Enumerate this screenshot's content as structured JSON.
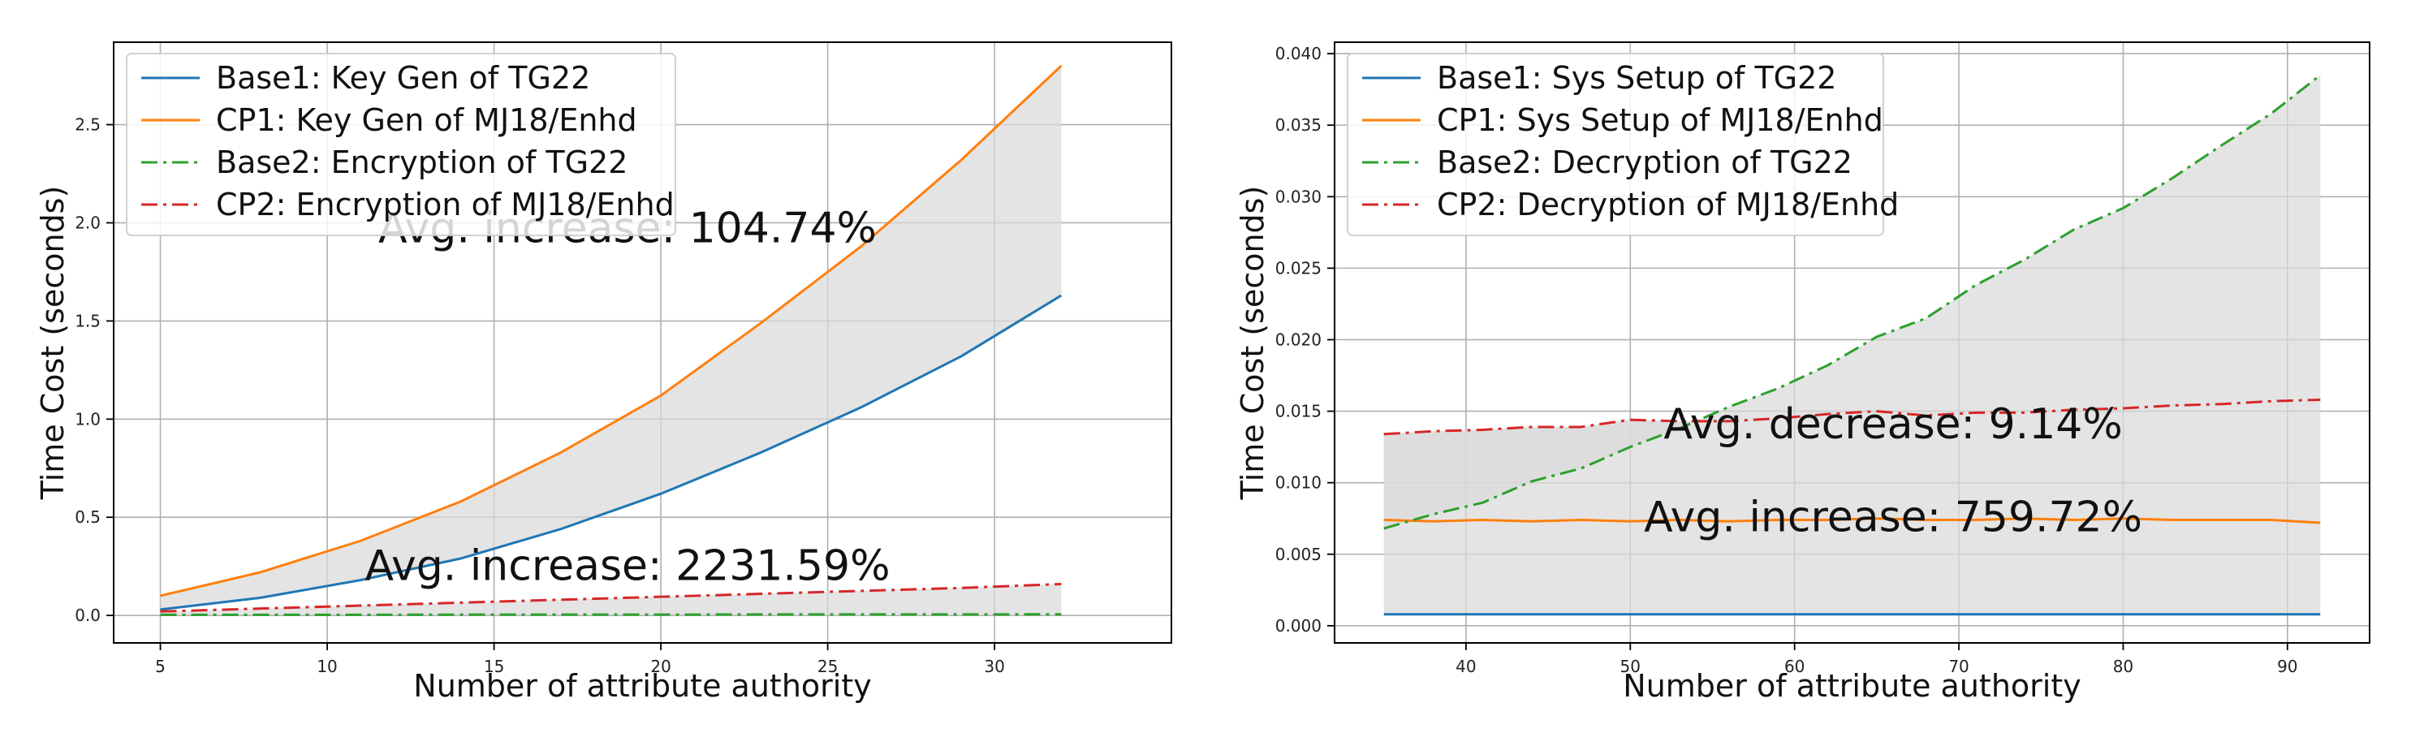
{
  "chart_data": [
    {
      "type": "line",
      "xlabel": "Number of attribute authority",
      "ylabel": "Time Cost (seconds)",
      "xlim": [
        3.6,
        35.3
      ],
      "ylim": [
        -0.14,
        2.92
      ],
      "xticks": [
        5,
        10,
        15,
        20,
        25,
        30
      ],
      "yticks": [
        0.0,
        0.5,
        1.0,
        1.5,
        2.0,
        2.5
      ],
      "xtick_labels": [
        "5",
        "10",
        "15",
        "20",
        "25",
        "30"
      ],
      "ytick_labels": [
        "0.0",
        "0.5",
        "1.0",
        "1.5",
        "2.0",
        "2.5"
      ],
      "grid": true,
      "legend_position": "upper-left",
      "x": [
        5,
        8,
        11,
        14,
        17,
        20,
        23,
        26,
        29,
        32
      ],
      "series": [
        {
          "name": "Base1: Key Gen of TG22",
          "color": "#1f77b4",
          "style": "solid",
          "values": [
            0.03,
            0.09,
            0.18,
            0.29,
            0.44,
            0.62,
            0.83,
            1.06,
            1.32,
            1.63
          ]
        },
        {
          "name": "CP1: Key Gen of MJ18/Enhd",
          "color": "#ff7f0e",
          "style": "solid",
          "values": [
            0.1,
            0.22,
            0.38,
            0.58,
            0.83,
            1.12,
            1.49,
            1.88,
            2.32,
            2.8
          ]
        },
        {
          "name": "Base2: Encryption of TG22",
          "color": "#2ca02c",
          "style": "dashdot",
          "values": [
            0.003,
            0.003,
            0.003,
            0.004,
            0.004,
            0.004,
            0.005,
            0.005,
            0.005,
            0.006
          ]
        },
        {
          "name": "CP2: Encryption of MJ18/Enhd",
          "color": "#d62728",
          "style": "dashdot",
          "values": [
            0.02,
            0.035,
            0.05,
            0.065,
            0.08,
            0.095,
            0.11,
            0.125,
            0.14,
            0.16
          ]
        }
      ],
      "fills": [
        {
          "between": [
            0,
            1
          ]
        },
        {
          "between": [
            2,
            3
          ]
        }
      ],
      "annotations": [
        {
          "text": "Avg. increase: 104.74%",
          "x": 19.0,
          "y": 1.9
        },
        {
          "text": "Avg. increase: 2231.59%",
          "x": 19.0,
          "y": 0.18
        }
      ]
    },
    {
      "type": "line",
      "xlabel": "Number of attribute authority",
      "ylabel": "Time Cost (seconds)",
      "xlim": [
        32.0,
        95.0
      ],
      "ylim": [
        -0.0012,
        0.0408
      ],
      "xticks": [
        40,
        50,
        60,
        70,
        80,
        90
      ],
      "yticks": [
        0.0,
        0.005,
        0.01,
        0.015,
        0.02,
        0.025,
        0.03,
        0.035,
        0.04
      ],
      "xtick_labels": [
        "40",
        "50",
        "60",
        "70",
        "80",
        "90"
      ],
      "ytick_labels": [
        "0.000",
        "0.005",
        "0.010",
        "0.015",
        "0.020",
        "0.025",
        "0.030",
        "0.035",
        "0.040"
      ],
      "grid": true,
      "legend_position": "upper-left",
      "x": [
        35,
        38,
        41,
        44,
        47,
        50,
        53,
        56,
        59,
        62,
        65,
        68,
        71,
        74,
        77,
        80,
        83,
        86,
        89,
        92
      ],
      "series": [
        {
          "name": "Base1: Sys Setup of TG22",
          "color": "#1f77b4",
          "style": "solid",
          "values": [
            0.0008,
            0.0008,
            0.0008,
            0.0008,
            0.0008,
            0.0008,
            0.0008,
            0.0008,
            0.0008,
            0.0008,
            0.0008,
            0.0008,
            0.0008,
            0.0008,
            0.0008,
            0.0008,
            0.0008,
            0.0008,
            0.0008,
            0.0008
          ]
        },
        {
          "name": "CP1: Sys Setup of MJ18/Enhd",
          "color": "#ff7f0e",
          "style": "solid",
          "values": [
            0.0074,
            0.0073,
            0.0074,
            0.0073,
            0.0074,
            0.0073,
            0.0074,
            0.0073,
            0.0074,
            0.0074,
            0.0075,
            0.0074,
            0.0074,
            0.0075,
            0.0074,
            0.0075,
            0.0074,
            0.0074,
            0.0074,
            0.0072
          ]
        },
        {
          "name": "Base2: Decryption of TG22",
          "color": "#2ca02c",
          "style": "dashdot",
          "values": [
            0.0068,
            0.0078,
            0.0086,
            0.0101,
            0.011,
            0.0125,
            0.0138,
            0.0153,
            0.0166,
            0.0182,
            0.0202,
            0.0215,
            0.0238,
            0.0256,
            0.0277,
            0.0292,
            0.0313,
            0.0336,
            0.0358,
            0.0385
          ]
        },
        {
          "name": "CP2: Decryption of MJ18/Enhd",
          "color": "#d62728",
          "style": "dashdot",
          "values": [
            0.0134,
            0.0136,
            0.0137,
            0.0139,
            0.0139,
            0.0144,
            0.0143,
            0.0143,
            0.0145,
            0.0148,
            0.015,
            0.0147,
            0.0149,
            0.0149,
            0.0151,
            0.0152,
            0.0154,
            0.0155,
            0.0157,
            0.0158
          ]
        }
      ],
      "fills": [
        {
          "between": [
            0,
            1
          ]
        },
        {
          "between": [
            1,
            3
          ]
        },
        {
          "between": [
            2,
            3
          ]
        }
      ],
      "annotations": [
        {
          "text": "Avg. decrease: 9.14%",
          "x": 66.0,
          "y": 0.0131
        },
        {
          "text": "Avg. increase: 759.72%",
          "x": 66.0,
          "y": 0.0066
        }
      ]
    }
  ]
}
